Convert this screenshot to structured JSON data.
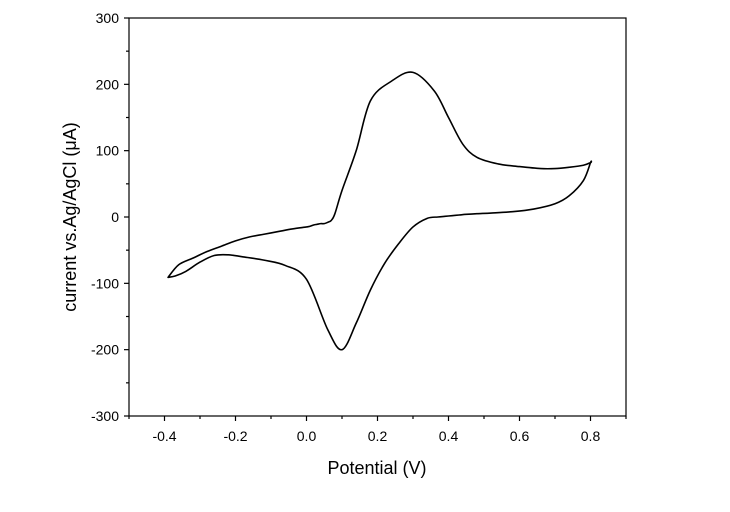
{
  "chart_data": {
    "type": "line",
    "xlabel": "Potential (V)",
    "ylabel": "current vs.Ag/AgCl (μA)",
    "xlim": [
      -0.5,
      0.9
    ],
    "ylim": [
      -300,
      300
    ],
    "xticks": [
      -0.4,
      -0.2,
      0.0,
      0.2,
      0.4,
      0.6,
      0.8
    ],
    "xtick_labels": [
      "-0.4",
      "-0.2",
      "0.0",
      "0.2",
      "0.4",
      "0.6",
      "0.8"
    ],
    "yticks": [
      -300,
      -200,
      -100,
      0,
      100,
      200,
      300
    ],
    "ytick_labels": [
      "-300",
      "-200",
      "-100",
      "0",
      "100",
      "200",
      "300"
    ],
    "grid": false,
    "legend": "none",
    "line_color": "#000000",
    "series": [
      {
        "x": [
          -0.39,
          -0.37,
          -0.34,
          -0.3,
          -0.26,
          -0.22,
          -0.18,
          -0.12,
          -0.06,
          0.0,
          0.06,
          0.1,
          0.14,
          0.18,
          0.22,
          0.26,
          0.3,
          0.34,
          0.37,
          0.39,
          0.41,
          0.43,
          0.45,
          0.48,
          0.52,
          0.58,
          0.64,
          0.7,
          0.74,
          0.78,
          0.8,
          0.8,
          0.78,
          0.74,
          0.7,
          0.66,
          0.6,
          0.54,
          0.48,
          0.44,
          0.4,
          0.36,
          0.3,
          0.24,
          0.18,
          0.14,
          0.1,
          0.08,
          0.07,
          0.06,
          0.05,
          0.04,
          0.03,
          0.02,
          0.01,
          0.0,
          -0.04,
          -0.08,
          -0.12,
          -0.16,
          -0.2,
          -0.24,
          -0.28,
          -0.32,
          -0.36,
          -0.39
        ],
        "y": [
          -91,
          -89,
          -82,
          -68,
          -58,
          -57,
          -60,
          -65,
          -73,
          -94,
          -170,
          -200,
          -160,
          -110,
          -70,
          -40,
          -15,
          -2,
          0,
          1,
          2,
          3,
          4,
          5,
          6,
          8,
          12,
          20,
          32,
          55,
          82,
          82,
          78,
          75,
          73,
          73,
          76,
          80,
          90,
          110,
          150,
          190,
          218,
          205,
          175,
          100,
          40,
          5,
          -5,
          -8,
          -10,
          -10,
          -11,
          -12,
          -14,
          -15,
          -18,
          -22,
          -26,
          -30,
          -36,
          -44,
          -52,
          -62,
          -72,
          -91
        ]
      }
    ]
  }
}
